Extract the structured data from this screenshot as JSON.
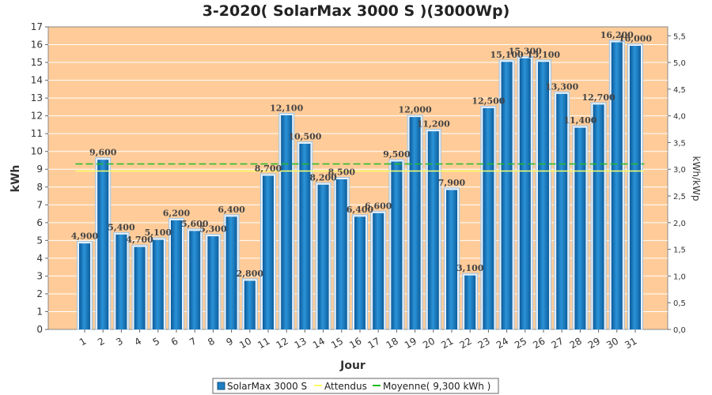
{
  "chart_data": {
    "type": "bar",
    "title": "3-2020( SolarMax 3000 S )(3000Wp)",
    "xlabel": "Jour",
    "ylabel": "kWh",
    "y2label": "kWh/kWp",
    "categories": [
      "1",
      "2",
      "3",
      "4",
      "5",
      "6",
      "7",
      "8",
      "9",
      "10",
      "11",
      "12",
      "13",
      "14",
      "15",
      "16",
      "17",
      "18",
      "19",
      "20",
      "21",
      "22",
      "23",
      "24",
      "25",
      "26",
      "27",
      "28",
      "29",
      "30",
      "31"
    ],
    "series": [
      {
        "name": "SolarMax 3000 S",
        "values": [
          4.9,
          9.6,
          5.4,
          4.7,
          5.1,
          6.2,
          5.6,
          5.3,
          6.4,
          2.8,
          8.7,
          12.1,
          10.5,
          8.2,
          8.5,
          6.4,
          6.6,
          9.5,
          12.0,
          11.2,
          7.9,
          3.1,
          12.5,
          15.1,
          15.3,
          15.1,
          13.3,
          11.4,
          12.7,
          16.2,
          16.0
        ],
        "labels": [
          "4,900",
          "9,600",
          "5,400",
          "4,700",
          "5,100",
          "6,200",
          "5,600",
          "5,300",
          "6,400",
          "2,800",
          "8,700",
          "12,100",
          "10,500",
          "8,200",
          "8,500",
          "6,400",
          "6,600",
          "9,500",
          "12,000",
          "11,200",
          "7,900",
          "3,100",
          "12,500",
          "15,100",
          "15,300",
          "15,100",
          "13,300",
          "11,400",
          "12,700",
          "16,200",
          "16,000"
        ],
        "color": "#1f7fc4"
      }
    ],
    "lines": [
      {
        "name": "Attendus",
        "value": 8.9,
        "color": "#ffff66"
      },
      {
        "name": "Moyenne( 9,300 kWh )",
        "value": 9.3,
        "color": "#22bb22"
      }
    ],
    "ylim": [
      0,
      17
    ],
    "yticks": [
      "0",
      "1",
      "2",
      "3",
      "4",
      "5",
      "6",
      "7",
      "8",
      "9",
      "10",
      "11",
      "12",
      "13",
      "14",
      "15",
      "16",
      "17"
    ],
    "y2lim": [
      0,
      5.6667
    ],
    "y2ticks": [
      {
        "v": 0.0,
        "t": "0,0"
      },
      {
        "v": 0.5,
        "t": "0,5"
      },
      {
        "v": 1.0,
        "t": "1,0"
      },
      {
        "v": 1.5,
        "t": "1,5"
      },
      {
        "v": 2.0,
        "t": "2,0"
      },
      {
        "v": 2.5,
        "t": "2,5"
      },
      {
        "v": 3.0,
        "t": "3,0"
      },
      {
        "v": 3.5,
        "t": "3,5"
      },
      {
        "v": 4.0,
        "t": "4,0"
      },
      {
        "v": 4.5,
        "t": "4,5"
      },
      {
        "v": 5.0,
        "t": "5,0"
      },
      {
        "v": 5.5,
        "t": "5,5"
      }
    ],
    "legend": [
      {
        "label": "SolarMax 3000 S",
        "kind": "box",
        "color": "#1f7fc4"
      },
      {
        "label": "Attendus",
        "kind": "line",
        "color": "#ffff66"
      },
      {
        "label": "Moyenne( 9,300 kWh )",
        "kind": "line",
        "color": "#22bb22"
      }
    ],
    "legend_position": "bottom-center",
    "background": "#ffcc99",
    "grid": true
  }
}
